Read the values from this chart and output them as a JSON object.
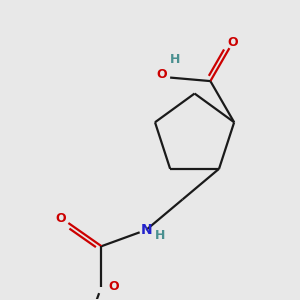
{
  "bg_color": "#e8e8e8",
  "bond_color": "#1a1a1a",
  "oxygen_color": "#cc0000",
  "nitrogen_color": "#2222cc",
  "hydrogen_color": "#4a9090",
  "line_width": 1.6,
  "figsize": [
    3.0,
    3.0
  ],
  "dpi": 100,
  "xlim": [
    0,
    300
  ],
  "ylim": [
    0,
    300
  ]
}
